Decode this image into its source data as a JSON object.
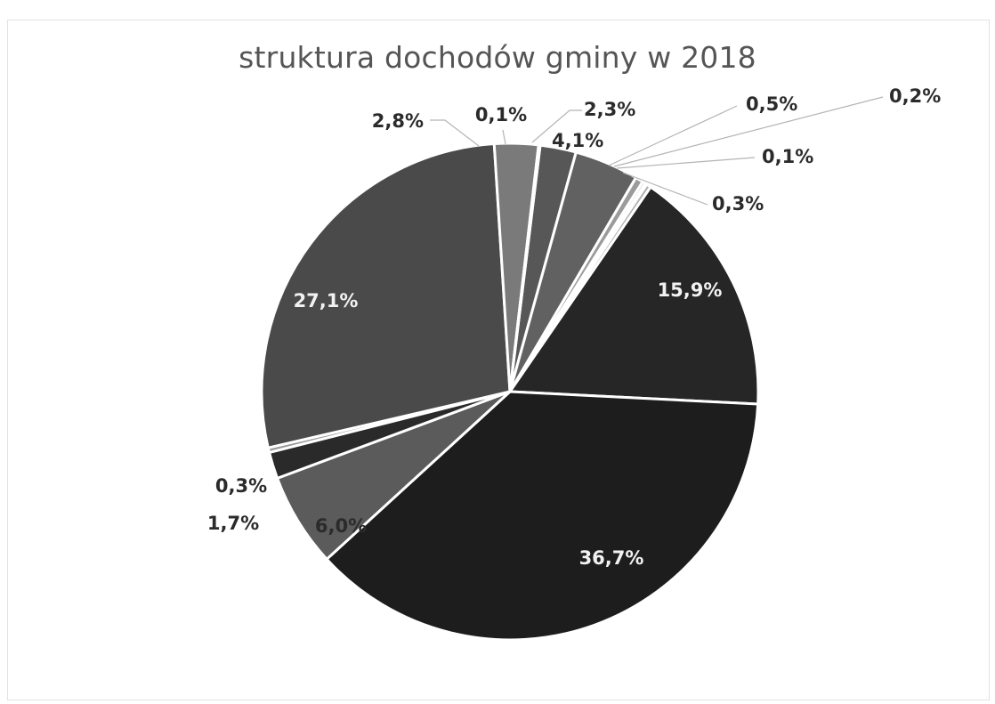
{
  "chart_data": {
    "type": "pie",
    "title": "struktura dochodów gminy w 2018",
    "slices": [
      {
        "value": 2.3,
        "label": "2,3%",
        "color": "#575757"
      },
      {
        "value": 4.1,
        "label": "4,1%",
        "color": "#616161"
      },
      {
        "value": 0.5,
        "label": "0,5%",
        "color": "#9b9b9b"
      },
      {
        "value": 0.2,
        "label": "0,2%",
        "color": "#c6c6c6"
      },
      {
        "value": 0.1,
        "label": "0,1%",
        "color": "#e8e8e8"
      },
      {
        "value": 0.3,
        "label": "0,3%",
        "color": "#b2b2b2"
      },
      {
        "value": 15.9,
        "label": "15,9%",
        "color": "#262626"
      },
      {
        "value": 36.7,
        "label": "36,7%",
        "color": "#1d1d1d"
      },
      {
        "value": 6.0,
        "label": "6,0%",
        "color": "#5b5b5b"
      },
      {
        "value": 1.7,
        "label": "1,7%",
        "color": "#2a2a2a"
      },
      {
        "value": 0.3,
        "label": "0,3%",
        "color": "#9a9a9a"
      },
      {
        "value": 27.1,
        "label": "27,1%",
        "color": "#4a4a4a"
      },
      {
        "value": 2.8,
        "label": "2,8%",
        "color": "#7a7a7a"
      },
      {
        "value": 0.1,
        "label": "0,1%",
        "color": "#bdbdbd"
      }
    ]
  }
}
